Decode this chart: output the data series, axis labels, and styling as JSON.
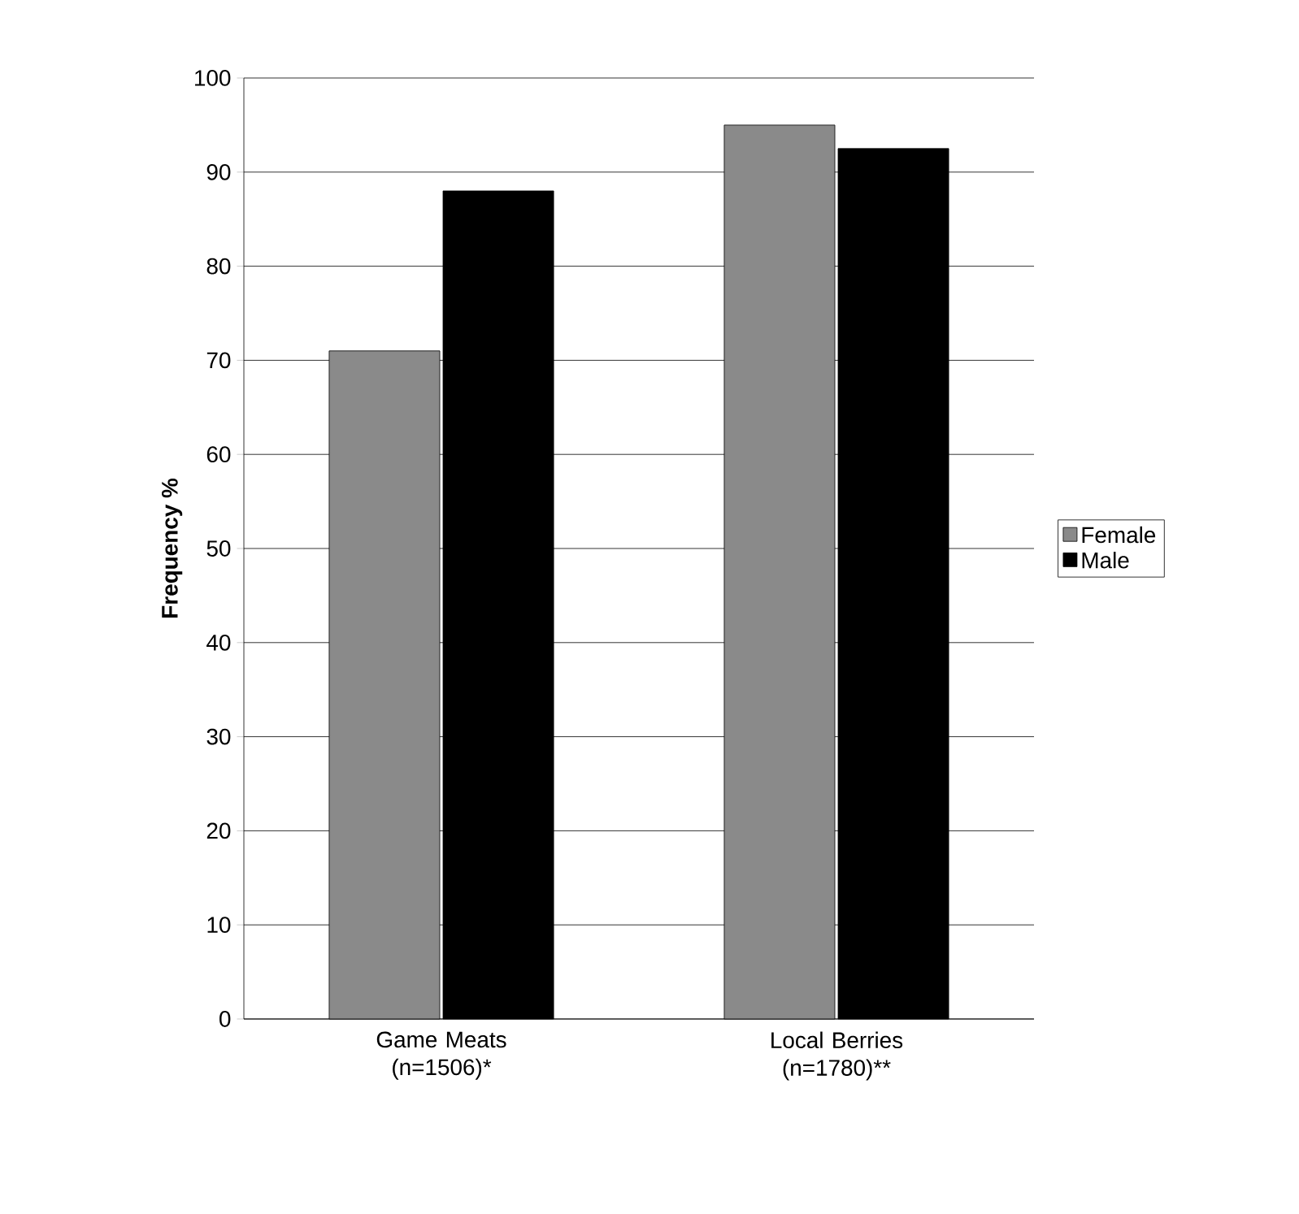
{
  "chart_data": {
    "type": "bar",
    "ylabel": "Frequency %",
    "categories": [
      "Game Meats (n=1506)*",
      "Local Berries (n=1780)**"
    ],
    "series": [
      {
        "name": "Female",
        "color": "#8a8a8a",
        "values": [
          71,
          95
        ]
      },
      {
        "name": "Male",
        "color": "#000000",
        "values": [
          88,
          92.5
        ]
      }
    ],
    "ylim": [
      0,
      100
    ],
    "yticks": [
      0,
      10,
      20,
      30,
      40,
      50,
      60,
      70,
      80,
      90,
      100
    ],
    "grid": "y",
    "legend": "right"
  }
}
